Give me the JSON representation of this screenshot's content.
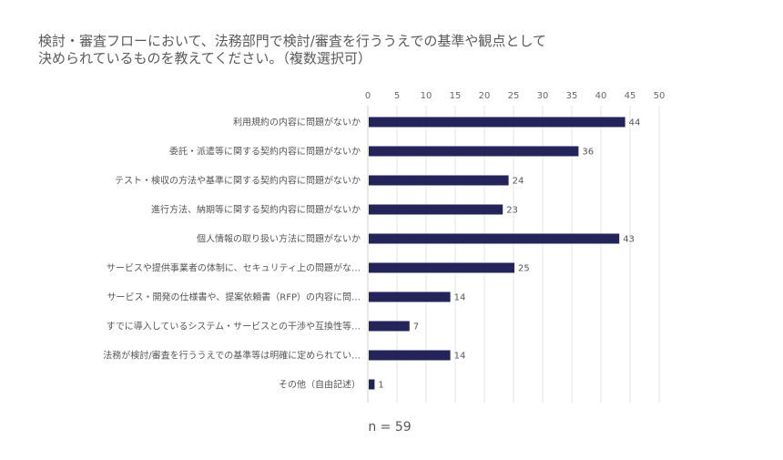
{
  "chart_data": {
    "type": "bar",
    "orientation": "horizontal",
    "title_lines": [
      "検討・審査フローにおいて、法務部門で検討/審査を行ううえでの基準や観点として",
      "決められているものを教えてください。（複数選択可）"
    ],
    "categories": [
      "利用規約の内容に問題がないか",
      "委託・派遣等に関する契約内容に問題がないか",
      "テスト・検収の方法や基準に関する契約内容に問題がないか",
      "進行方法、納期等に関する契約内容に問題がないか",
      "個人情報の取り扱い方法に問題がないか",
      "サービスや提供事業者の体制に、セキュリティ上の問題がな…",
      "サービス・開発の仕様書や、提案依頼書（RFP）の内容に問…",
      "すでに導入しているシステム・サービスとの干渉や互換性等…",
      "法務が検討/審査を行ううえでの基準等は明確に定められてい…",
      "その他（自由記述）"
    ],
    "values": [
      44,
      36,
      24,
      23,
      43,
      25,
      14,
      7,
      14,
      1
    ],
    "xlim": [
      0,
      50
    ],
    "xticks": [
      0,
      5,
      10,
      15,
      20,
      25,
      30,
      35,
      40,
      45,
      50
    ],
    "axis_position": "top",
    "grid": true,
    "bar_color": "#23255a",
    "note": "n = 59"
  }
}
